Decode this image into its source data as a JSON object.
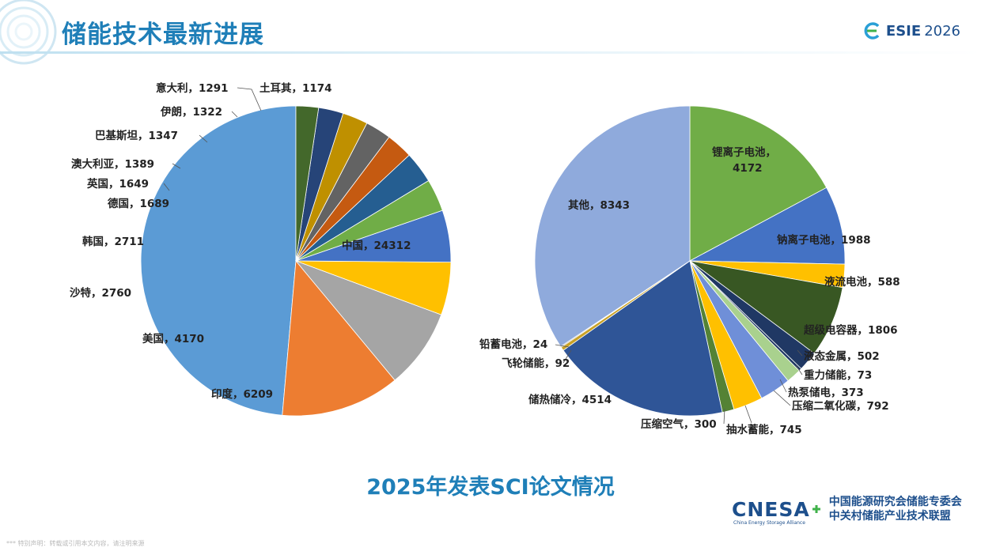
{
  "header": {
    "title": "储能技术最新进展",
    "logo_text": "ESIE",
    "logo_year": "2026"
  },
  "subtitle": "2025年发表SCI论文情况",
  "footer": {
    "brand": "CNESA",
    "brand_en": "China Energy Storage Alliance",
    "org_line1": "中国能源研究会储能专委会",
    "org_line2": "中关村储能产业技术联盟",
    "note": "*** 特别声明：转载或引用本文内容，请注明来源"
  },
  "colors": {
    "brand_blue": "#1f7fb8",
    "dark_blue": "#1d4f8c"
  },
  "chart_data": [
    {
      "type": "pie",
      "title": "",
      "slices": [
        {
          "label": "中国",
          "value": 24312,
          "color": "#5b9bd5"
        },
        {
          "label": "印度",
          "value": 6209,
          "color": "#ed7d31"
        },
        {
          "label": "美国",
          "value": 4170,
          "color": "#a5a5a5"
        },
        {
          "label": "沙特",
          "value": 2760,
          "color": "#ffc000"
        },
        {
          "label": "韩国",
          "value": 2711,
          "color": "#4472c4"
        },
        {
          "label": "德国",
          "value": 1689,
          "color": "#70ad47"
        },
        {
          "label": "英国",
          "value": 1649,
          "color": "#255e91"
        },
        {
          "label": "澳大利亚",
          "value": 1389,
          "color": "#c55a11"
        },
        {
          "label": "巴基斯坦",
          "value": 1347,
          "color": "#636363"
        },
        {
          "label": "伊朗",
          "value": 1322,
          "color": "#bf9000"
        },
        {
          "label": "意大利",
          "value": 1291,
          "color": "#264478"
        },
        {
          "label": "土耳其",
          "value": 1174,
          "color": "#43682b"
        }
      ]
    },
    {
      "type": "pie",
      "title": "",
      "slices": [
        {
          "label": "锂离子电池",
          "value": 4172,
          "color": "#70ad47"
        },
        {
          "label": "钠离子电池",
          "value": 1988,
          "color": "#4472c4"
        },
        {
          "label": "液流电池",
          "value": 588,
          "color": "#ffc000"
        },
        {
          "label": "超级电容器",
          "value": 1806,
          "color": "#385723"
        },
        {
          "label": "液态金属",
          "value": 502,
          "color": "#203864"
        },
        {
          "label": "重力储能",
          "value": 73,
          "color": "#1f3864"
        },
        {
          "label": "热泵储电",
          "value": 373,
          "color": "#a9d18e"
        },
        {
          "label": "压缩二氧化碳",
          "value": 792,
          "color": "#6f8fd8"
        },
        {
          "label": "抽水蓄能",
          "value": 745,
          "color": "#ffc000"
        },
        {
          "label": "压缩空气",
          "value": 300,
          "color": "#548235"
        },
        {
          "label": "储热储冷",
          "value": 4514,
          "color": "#2f5597"
        },
        {
          "label": "飞轮储能",
          "value": 92,
          "color": "#c9a227"
        },
        {
          "label": "铅蓄电池",
          "value": 24,
          "color": "#7f7f7f"
        },
        {
          "label": "其他",
          "value": 8343,
          "color": "#8faadc"
        }
      ]
    }
  ]
}
